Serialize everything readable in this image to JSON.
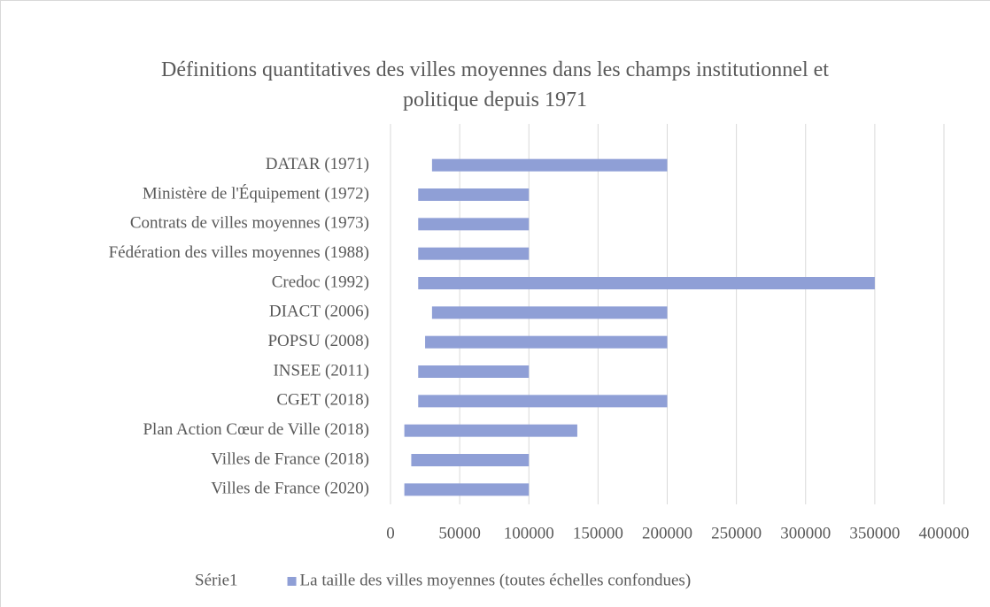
{
  "chart_data": {
    "type": "bar",
    "orientation": "horizontal",
    "stacked": true,
    "title": "Définitions quantitatives des villes moyennes dans les champs institutionnel et politique depuis 1971",
    "categories": [
      "DATAR (1971)",
      "Ministère de l'Équipement (1972)",
      "Contrats de villes moyennes (1973)",
      "Fédération des villes moyennes (1988)",
      "Credoc (1992)",
      "DIACT (2006)",
      "POPSU (2008)",
      "INSEE (2011)",
      "CGET (2018)",
      "Plan Action Cœur de Ville (2018)",
      "Villes de France (2018)",
      "Villes de France (2020)"
    ],
    "series": [
      {
        "name": "Série1",
        "color": "none",
        "values": [
          30000,
          20000,
          20000,
          20000,
          20000,
          30000,
          25000,
          20000,
          20000,
          10000,
          15000,
          10000
        ]
      },
      {
        "name": "La taille des villes moyennes (toutes échelles confondues)",
        "color": "#8f9fd6",
        "values": [
          170000,
          80000,
          80000,
          80000,
          330000,
          170000,
          175000,
          80000,
          180000,
          125000,
          85000,
          90000
        ]
      }
    ],
    "xlim": [
      0,
      400000
    ],
    "xticks": [
      0,
      50000,
      100000,
      150000,
      200000,
      250000,
      300000,
      350000,
      400000
    ],
    "grid": true,
    "legend": "bottom"
  }
}
